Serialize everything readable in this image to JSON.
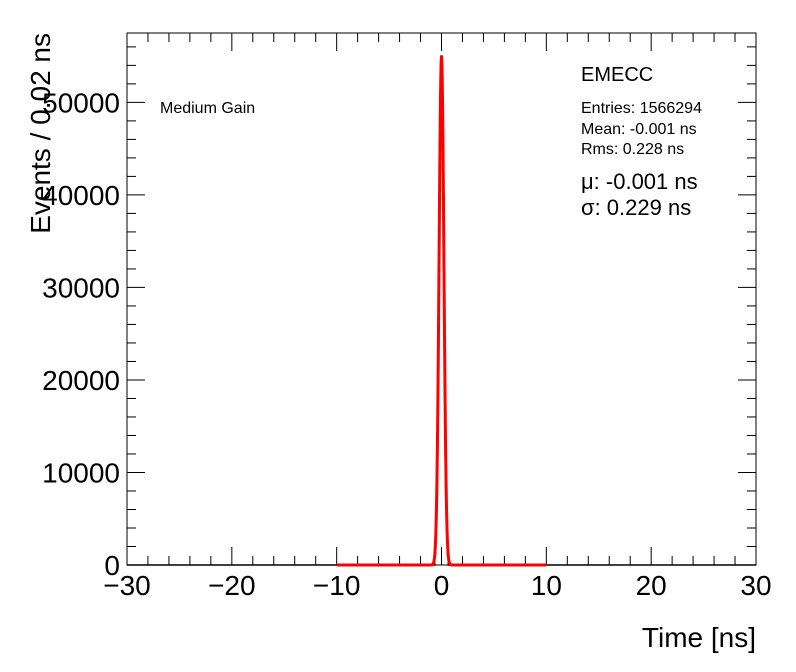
{
  "chart_data": {
    "type": "line",
    "xlabel": "Time [ns]",
    "ylabel": "Events / 0.02 ns",
    "xlim": [
      -30,
      30
    ],
    "ylim": [
      0,
      57500
    ],
    "grid": false,
    "x_ticks": [
      -30,
      -20,
      -10,
      0,
      10,
      20,
      30
    ],
    "x_tick_labels": [
      "−30",
      "−20",
      "−10",
      "0",
      "10",
      "20",
      "30"
    ],
    "y_ticks": [
      0,
      10000,
      20000,
      30000,
      40000,
      50000
    ],
    "y_tick_labels": [
      "0",
      "10000",
      "20000",
      "30000",
      "40000",
      "50000"
    ],
    "annotation": "Medium Gain",
    "stats": {
      "title": "EMECC",
      "entries": "Entries: 1566294",
      "mean": "Mean: -0.001 ns",
      "rms": "Rms: 0.228 ns",
      "mu": "μ: -0.001 ns",
      "sigma": "σ: 0.229 ns"
    },
    "fit": {
      "mean": -0.001,
      "sigma": 0.229,
      "peak": 55000,
      "range": [
        -10,
        10
      ],
      "color": "#ff0000"
    },
    "series": [
      {
        "x": [
          -0.6,
          -0.5,
          -0.4,
          -0.3,
          -0.2,
          -0.1,
          0.0,
          0.1,
          0.2,
          0.3,
          0.4,
          0.5,
          0.6
        ],
        "values": [
          1200,
          5000,
          12000,
          25000,
          40000,
          50000,
          55000,
          50000,
          40000,
          25000,
          12000,
          5000,
          1200
        ],
        "color": "#000000"
      }
    ]
  }
}
